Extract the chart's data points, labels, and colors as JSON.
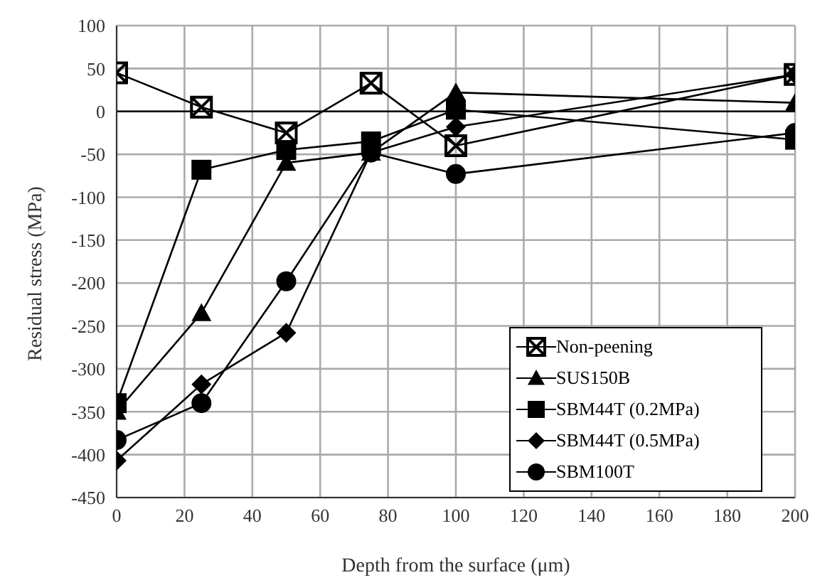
{
  "chart_data": {
    "type": "line",
    "xlabel": "Depth from the surface (μm)",
    "ylabel": "Residual stress (MPa)",
    "x": [
      0,
      25,
      50,
      75,
      100,
      200
    ],
    "series": [
      {
        "name": "Non-peening",
        "color": "#000000",
        "marker": "cross",
        "values": [
          45,
          5,
          -25,
          33,
          -40,
          43
        ]
      },
      {
        "name": "SUS150B",
        "color": "#000000",
        "marker": "triangle",
        "values": [
          -350,
          -235,
          -60,
          -48,
          22,
          10
        ]
      },
      {
        "name": "SBM44T (0.2MPa)",
        "color": "#000000",
        "marker": "square",
        "values": [
          -340,
          -68,
          -45,
          -35,
          2,
          -33
        ]
      },
      {
        "name": "SBM44T (0.5MPa)",
        "color": "#000000",
        "marker": "diamond",
        "values": [
          -407,
          -318,
          -258,
          -48,
          -18,
          43
        ]
      },
      {
        "name": "SBM100T",
        "color": "#000000",
        "marker": "circle",
        "values": [
          -383,
          -340,
          -198,
          -48,
          -73,
          -25
        ]
      }
    ],
    "xlim": [
      0,
      200
    ],
    "xticks": [
      0,
      20,
      40,
      60,
      80,
      100,
      120,
      140,
      160,
      180,
      200
    ],
    "ylim": [
      -450,
      100
    ],
    "yticks": [
      -450,
      -400,
      -350,
      -300,
      -250,
      -200,
      -150,
      -100,
      -50,
      0,
      50,
      100
    ],
    "ref_lines": [
      {
        "axis": "y",
        "value": 0,
        "color": "#000000"
      }
    ],
    "grid": true,
    "legend": "bottom right",
    "line_style": "solid"
  }
}
